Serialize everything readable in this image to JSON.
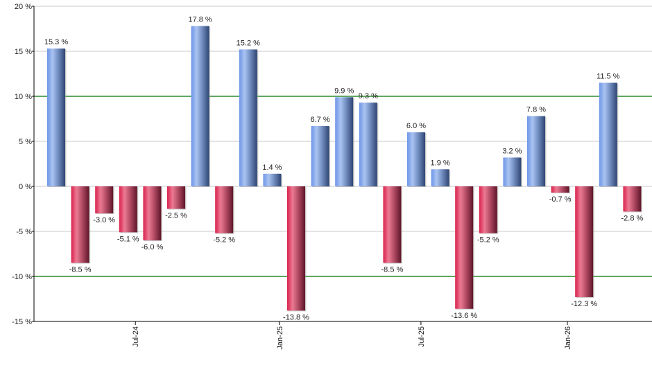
{
  "chart_data": {
    "type": "bar",
    "title": "",
    "xlabel": "",
    "ylabel": "",
    "ylim": [
      -15,
      20
    ],
    "y_ticks": [
      "20 %",
      "15 %",
      "10 %",
      "5 %",
      "0 %",
      "-5 %",
      "-10 %",
      "-15 %"
    ],
    "y_tick_values": [
      20,
      15,
      10,
      5,
      0,
      -5,
      -10,
      -15
    ],
    "x_tick_labels": [
      {
        "label": "Jul-24",
        "bar_index": 3.3
      },
      {
        "label": "Jan-25",
        "bar_index": 9.3
      },
      {
        "label": "Jul-25",
        "bar_index": 15.2
      },
      {
        "label": "Jan-26",
        "bar_index": 21.3
      }
    ],
    "reference_lines": [
      10,
      -10
    ],
    "grid": true,
    "legend": null,
    "values": [
      15.3,
      -8.5,
      -3.0,
      -5.1,
      -6.0,
      -2.5,
      17.8,
      -5.2,
      15.2,
      1.4,
      -13.8,
      6.7,
      9.9,
      9.3,
      -8.5,
      6.0,
      1.9,
      -13.6,
      -5.2,
      3.2,
      7.8,
      -0.7,
      -12.3,
      11.5,
      -2.8
    ],
    "labels": [
      "15.3 %",
      "-8.5 %",
      "-3.0 %",
      "-5.1 %",
      "-6.0 %",
      "-2.5 %",
      "17.8 %",
      "-5.2 %",
      "15.2 %",
      "1.4 %",
      "-13.8 %",
      "6.7 %",
      "9.9 %",
      "9.3 %",
      "-8.5 %",
      "6.0 %",
      "1.9 %",
      "-13.6 %",
      "-5.2 %",
      "3.2 %",
      "7.8 %",
      "-0.7 %",
      "-12.3 %",
      "11.5 %",
      "-2.8 %"
    ],
    "colors": {
      "positive": "#7a9ee0",
      "negative": "#d8314f",
      "reference_line": "#007000",
      "grid": "#c8c8c8",
      "axis": "#000000"
    }
  }
}
